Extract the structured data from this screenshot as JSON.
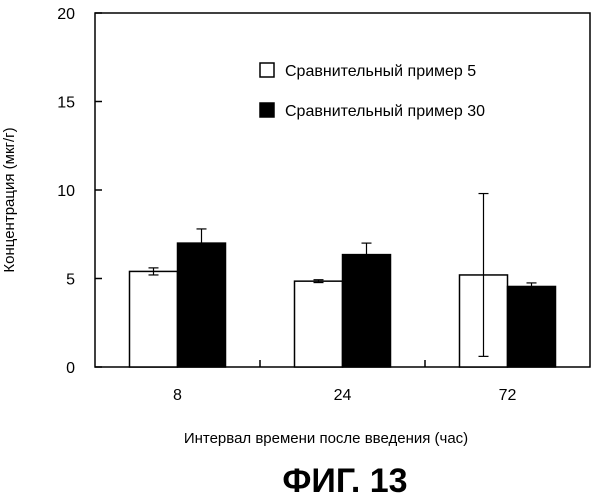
{
  "chart_data": {
    "type": "bar",
    "categories": [
      "8",
      "24",
      "72"
    ],
    "series": [
      {
        "name": "Сравнительный пример 5",
        "values": [
          5.4,
          4.85,
          5.2
        ],
        "errors": [
          0.2,
          0.08,
          4.6
        ],
        "color": "#ffffff"
      },
      {
        "name": "Сравнительный пример 30",
        "values": [
          7.0,
          6.35,
          4.55
        ],
        "errors": [
          0.8,
          0.65,
          0.2
        ],
        "color": "#000000"
      }
    ],
    "xlabel": "Интервал времени после введения (час)",
    "ylabel": "Концентрация (мкг/г)",
    "ylim": [
      0,
      20
    ],
    "yticks": [
      "0",
      "5",
      "10",
      "15",
      "20"
    ],
    "grid": false,
    "legend_position": "top-right",
    "figure_label": "ФИГ. 13"
  }
}
